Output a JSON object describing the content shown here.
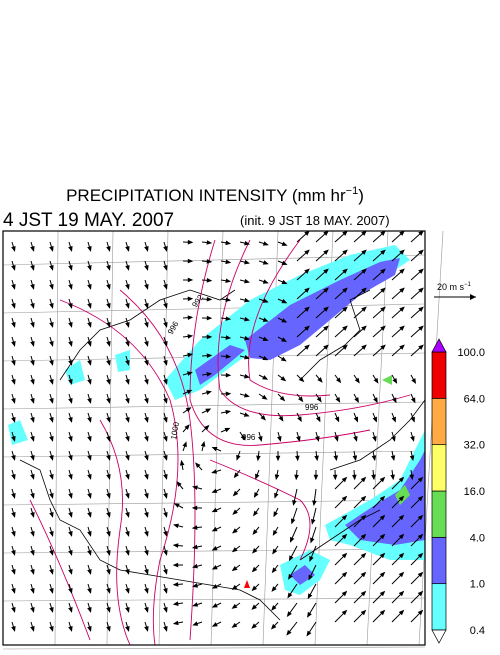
{
  "header": {
    "title": "PRECIPITATION INTENSITY (mm hr",
    "title_exponent": "−1",
    "title_close": ")",
    "valid_time": "4 JST 19 MAY. 2007",
    "init_time": "(init. 9 JST 18 MAY. 2007)"
  },
  "wind_key": {
    "label": "20 m s",
    "exponent": "−1"
  },
  "contour_labels": [
    "992",
    "996",
    "1000",
    "996",
    "996"
  ],
  "colorbar": {
    "labels": [
      "0.4",
      "1.0",
      "4.0",
      "16.0",
      "32.0",
      "64.0",
      "100.0"
    ],
    "colors": [
      "#66ffff",
      "#6666ff",
      "#66dd55",
      "#ffff66",
      "#ffaa44",
      "#ee0000"
    ],
    "over_color": "#aa00ff",
    "under_color": "#ffffff"
  }
}
